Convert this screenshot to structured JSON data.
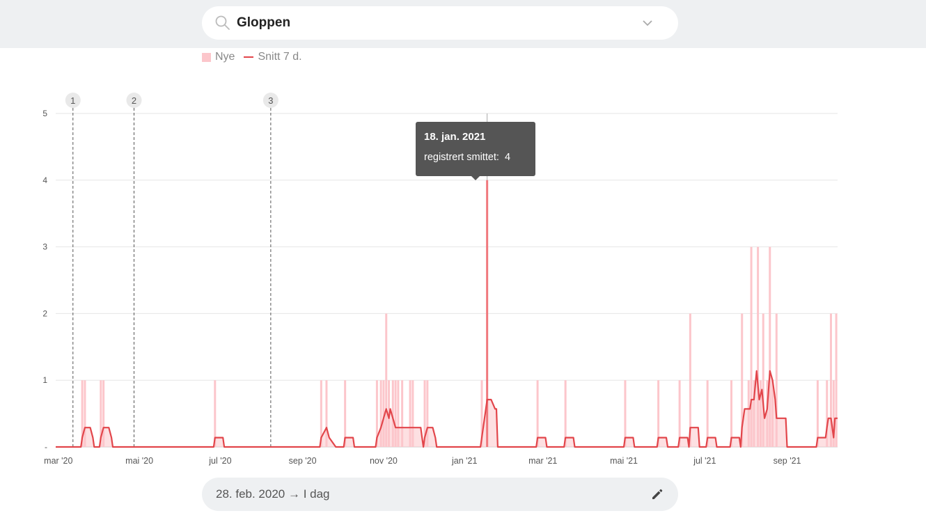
{
  "search": {
    "value": "Gloppen",
    "icon": "search-icon"
  },
  "legend": {
    "bars_label": "Nye",
    "line_label": "Snitt 7 d."
  },
  "tooltip": {
    "date": "18. jan. 2021",
    "label": "registrert smittet:",
    "value": "4"
  },
  "range": {
    "label": "28. feb. 2020 → I dag",
    "icon": "pencil-icon"
  },
  "colors": {
    "bar": "#fcc6cb",
    "line": "#e2454a",
    "band": "#eef0f2",
    "tooltip_bg": "#555555"
  },
  "chart_data": {
    "type": "bar",
    "x_type": "date",
    "x_range": [
      "2020-02-28",
      "2021-10-09"
    ],
    "ylim": [
      0,
      5
    ],
    "y_ticks": [
      "-",
      "1",
      "2",
      "3",
      "4",
      "5"
    ],
    "x_ticks": [
      {
        "date": "2020-03-01",
        "label": "mar '20"
      },
      {
        "date": "2020-05-01",
        "label": "mai '20"
      },
      {
        "date": "2020-07-01",
        "label": "jul '20"
      },
      {
        "date": "2020-09-01",
        "label": "sep '20"
      },
      {
        "date": "2020-11-01",
        "label": "nov '20"
      },
      {
        "date": "2021-01-01",
        "label": "jan '21"
      },
      {
        "date": "2021-03-01",
        "label": "mar '21"
      },
      {
        "date": "2021-05-01",
        "label": "mai '21"
      },
      {
        "date": "2021-07-01",
        "label": "jul '21"
      },
      {
        "date": "2021-09-01",
        "label": "sep '21"
      }
    ],
    "markers": [
      {
        "label": "1",
        "date": "2020-03-12"
      },
      {
        "label": "2",
        "date": "2020-04-27"
      },
      {
        "label": "3",
        "date": "2020-08-08"
      }
    ],
    "highlight_date": "2021-01-18",
    "series": [
      {
        "name": "Nye",
        "kind": "bar",
        "points": [
          [
            "2020-03-19",
            1
          ],
          [
            "2020-03-21",
            1
          ],
          [
            "2020-04-02",
            1
          ],
          [
            "2020-04-04",
            1
          ],
          [
            "2020-06-27",
            1
          ],
          [
            "2020-09-15",
            1
          ],
          [
            "2020-09-19",
            1
          ],
          [
            "2020-10-03",
            1
          ],
          [
            "2020-10-27",
            1
          ],
          [
            "2020-10-30",
            1
          ],
          [
            "2020-11-01",
            1
          ],
          [
            "2020-11-03",
            2
          ],
          [
            "2020-11-05",
            1
          ],
          [
            "2020-11-08",
            1
          ],
          [
            "2020-11-10",
            1
          ],
          [
            "2020-11-12",
            1
          ],
          [
            "2020-11-15",
            1
          ],
          [
            "2020-11-21",
            1
          ],
          [
            "2020-11-23",
            1
          ],
          [
            "2020-12-02",
            1
          ],
          [
            "2020-12-04",
            1
          ],
          [
            "2021-01-14",
            1
          ],
          [
            "2021-01-18",
            4
          ],
          [
            "2021-02-25",
            1
          ],
          [
            "2021-03-18",
            1
          ],
          [
            "2021-05-02",
            1
          ],
          [
            "2021-05-27",
            1
          ],
          [
            "2021-06-12",
            1
          ],
          [
            "2021-06-20",
            2
          ],
          [
            "2021-07-03",
            1
          ],
          [
            "2021-07-21",
            1
          ],
          [
            "2021-07-29",
            2
          ],
          [
            "2021-08-03",
            1
          ],
          [
            "2021-08-05",
            3
          ],
          [
            "2021-08-07",
            1
          ],
          [
            "2021-08-10",
            3
          ],
          [
            "2021-08-12",
            1
          ],
          [
            "2021-08-14",
            2
          ],
          [
            "2021-08-17",
            1
          ],
          [
            "2021-08-19",
            3
          ],
          [
            "2021-08-21",
            1
          ],
          [
            "2021-08-24",
            2
          ],
          [
            "2021-09-24",
            1
          ],
          [
            "2021-10-01",
            1
          ],
          [
            "2021-10-04",
            2
          ],
          [
            "2021-10-06",
            1
          ],
          [
            "2021-10-08",
            2
          ]
        ]
      },
      {
        "name": "Snitt 7 d.",
        "kind": "line",
        "points": [
          [
            "2020-02-28",
            0
          ],
          [
            "2020-03-18",
            0
          ],
          [
            "2020-03-19",
            0.14
          ],
          [
            "2020-03-21",
            0.29
          ],
          [
            "2020-03-25",
            0.29
          ],
          [
            "2020-03-27",
            0.14
          ],
          [
            "2020-03-28",
            0
          ],
          [
            "2020-04-01",
            0
          ],
          [
            "2020-04-02",
            0.14
          ],
          [
            "2020-04-04",
            0.29
          ],
          [
            "2020-04-08",
            0.29
          ],
          [
            "2020-04-10",
            0.14
          ],
          [
            "2020-04-11",
            0
          ],
          [
            "2020-06-26",
            0
          ],
          [
            "2020-06-27",
            0.14
          ],
          [
            "2020-07-03",
            0.14
          ],
          [
            "2020-07-04",
            0
          ],
          [
            "2020-09-14",
            0
          ],
          [
            "2020-09-15",
            0.14
          ],
          [
            "2020-09-19",
            0.29
          ],
          [
            "2020-09-21",
            0.14
          ],
          [
            "2020-09-26",
            0
          ],
          [
            "2020-10-02",
            0
          ],
          [
            "2020-10-03",
            0.14
          ],
          [
            "2020-10-09",
            0.14
          ],
          [
            "2020-10-10",
            0
          ],
          [
            "2020-10-26",
            0
          ],
          [
            "2020-10-27",
            0.14
          ],
          [
            "2020-10-30",
            0.29
          ],
          [
            "2020-11-01",
            0.43
          ],
          [
            "2020-11-03",
            0.57
          ],
          [
            "2020-11-05",
            0.43
          ],
          [
            "2020-11-06",
            0.57
          ],
          [
            "2020-11-08",
            0.43
          ],
          [
            "2020-11-10",
            0.29
          ],
          [
            "2020-11-22",
            0.29
          ],
          [
            "2020-11-29",
            0.29
          ],
          [
            "2020-11-30",
            0.14
          ],
          [
            "2020-12-01",
            0
          ],
          [
            "2020-12-02",
            0.14
          ],
          [
            "2020-12-04",
            0.29
          ],
          [
            "2020-12-08",
            0.29
          ],
          [
            "2020-12-10",
            0.14
          ],
          [
            "2020-12-11",
            0
          ],
          [
            "2021-01-13",
            0
          ],
          [
            "2021-01-14",
            0.14
          ],
          [
            "2021-01-18",
            0.71
          ],
          [
            "2021-01-21",
            0.71
          ],
          [
            "2021-01-24",
            0.57
          ],
          [
            "2021-01-25",
            0.57
          ],
          [
            "2021-01-26",
            0
          ],
          [
            "2021-02-24",
            0
          ],
          [
            "2021-02-25",
            0.14
          ],
          [
            "2021-03-03",
            0.14
          ],
          [
            "2021-03-04",
            0
          ],
          [
            "2021-03-17",
            0
          ],
          [
            "2021-03-18",
            0.14
          ],
          [
            "2021-03-24",
            0.14
          ],
          [
            "2021-03-25",
            0
          ],
          [
            "2021-05-01",
            0
          ],
          [
            "2021-05-02",
            0.14
          ],
          [
            "2021-05-08",
            0.14
          ],
          [
            "2021-05-09",
            0
          ],
          [
            "2021-05-26",
            0
          ],
          [
            "2021-05-27",
            0.14
          ],
          [
            "2021-06-02",
            0.14
          ],
          [
            "2021-06-03",
            0
          ],
          [
            "2021-06-11",
            0
          ],
          [
            "2021-06-12",
            0.14
          ],
          [
            "2021-06-18",
            0.14
          ],
          [
            "2021-06-19",
            0
          ],
          [
            "2021-06-20",
            0.29
          ],
          [
            "2021-06-26",
            0.29
          ],
          [
            "2021-06-27",
            0
          ],
          [
            "2021-07-02",
            0
          ],
          [
            "2021-07-03",
            0.14
          ],
          [
            "2021-07-09",
            0.14
          ],
          [
            "2021-07-10",
            0
          ],
          [
            "2021-07-20",
            0
          ],
          [
            "2021-07-21",
            0.14
          ],
          [
            "2021-07-27",
            0.14
          ],
          [
            "2021-07-28",
            0
          ],
          [
            "2021-07-29",
            0.29
          ],
          [
            "2021-07-31",
            0.57
          ],
          [
            "2021-08-04",
            0.57
          ],
          [
            "2021-08-05",
            0.71
          ],
          [
            "2021-08-07",
            0.71
          ],
          [
            "2021-08-09",
            1.14
          ],
          [
            "2021-08-11",
            0.71
          ],
          [
            "2021-08-13",
            0.86
          ],
          [
            "2021-08-15",
            0.43
          ],
          [
            "2021-08-17",
            0.57
          ],
          [
            "2021-08-19",
            1.14
          ],
          [
            "2021-08-21",
            1.0
          ],
          [
            "2021-08-23",
            0.71
          ],
          [
            "2021-08-24",
            0.43
          ],
          [
            "2021-08-31",
            0.43
          ],
          [
            "2021-09-01",
            0
          ],
          [
            "2021-09-23",
            0
          ],
          [
            "2021-09-24",
            0.14
          ],
          [
            "2021-09-30",
            0.14
          ],
          [
            "2021-10-01",
            0.29
          ],
          [
            "2021-10-02",
            0.43
          ],
          [
            "2021-10-04",
            0.43
          ],
          [
            "2021-10-06",
            0.14
          ],
          [
            "2021-10-07",
            0.43
          ],
          [
            "2021-10-09",
            0.43
          ]
        ]
      }
    ]
  }
}
